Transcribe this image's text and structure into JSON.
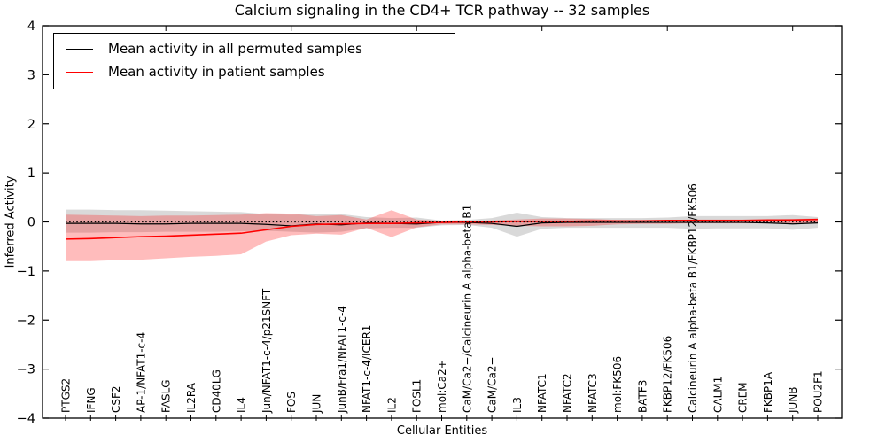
{
  "title": "Calcium signaling in the CD4+ TCR pathway -- 32 samples",
  "legend": {
    "entries": [
      {
        "label": "Mean activity in all permuted samples",
        "color": "#000000"
      },
      {
        "label": "Mean activity in patient samples",
        "color": "#ff0000"
      }
    ]
  },
  "axes": {
    "ylabel": "Inferred Activity",
    "xlabel": "Cellular Entities",
    "y_tick_labels": [
      "4",
      "3",
      "2",
      "1",
      "0",
      "−1",
      "−2",
      "−3",
      "−4"
    ],
    "y_tick_values": [
      4,
      3,
      2,
      1,
      0,
      -1,
      -2,
      -3,
      -4
    ]
  },
  "chart_data": {
    "type": "line",
    "title": "Calcium signaling in the CD4+ TCR pathway -- 32 samples",
    "xlabel": "Cellular Entities",
    "ylabel": "Inferred Activity",
    "ylim": [
      -4,
      4
    ],
    "grid": false,
    "legend_position": "upper left",
    "zero_line": {
      "y": 0,
      "style": "dotted",
      "color": "#000000"
    },
    "categories": [
      "PTGS2",
      "IFNG",
      "CSF2",
      "AP-1/NFAT1-c-4",
      "FASLG",
      "IL2RA",
      "CD40LG",
      "IL4",
      "Jun/NFAT1-c-4/p21SNFT",
      "FOS",
      "JUN",
      "JunB/Fra1/NFAT1-c-4",
      "NFAT1-c-4/ICER1",
      "IL2",
      "FOSL1",
      "mol:Ca2+",
      "CaM/Ca2+/Calcineurin A alpha-beta B1",
      "CaM/Ca2+",
      "IL3",
      "NFATC1",
      "NFATC2",
      "NFATC3",
      "mol:FK506",
      "BATF3",
      "FKBP12/FK506",
      "Calcineurin A alpha-beta B1/FKBP12/FK506",
      "CALM1",
      "CREM",
      "FKBP1A",
      "JUNB",
      "POU2F1"
    ],
    "series": [
      {
        "name": "Mean activity in all permuted samples",
        "color": "#000000",
        "width": 1.2,
        "values": [
          -0.03,
          -0.03,
          -0.03,
          -0.04,
          -0.04,
          -0.03,
          -0.03,
          -0.03,
          -0.05,
          -0.08,
          -0.04,
          -0.06,
          -0.02,
          -0.03,
          -0.04,
          -0.01,
          -0.01,
          -0.03,
          -0.09,
          -0.02,
          -0.01,
          -0.01,
          -0.01,
          -0.01,
          -0.01,
          -0.01,
          -0.01,
          -0.01,
          -0.02,
          -0.04,
          -0.02
        ]
      },
      {
        "name": "Mean activity in patient samples",
        "color": "#ff0000",
        "width": 1.6,
        "values": [
          -0.35,
          -0.34,
          -0.32,
          -0.3,
          -0.29,
          -0.27,
          -0.25,
          -0.23,
          -0.16,
          -0.09,
          -0.05,
          -0.04,
          -0.03,
          -0.03,
          -0.02,
          -0.01,
          0.0,
          0.0,
          0.01,
          0.01,
          0.01,
          0.02,
          0.02,
          0.02,
          0.03,
          0.03,
          0.03,
          0.03,
          0.04,
          0.04,
          0.05
        ]
      }
    ],
    "bands": [
      {
        "name": "permuted-samples-range",
        "color": "#9a9a9a",
        "opacity": 0.38,
        "upper": [
          0.25,
          0.25,
          0.24,
          0.24,
          0.23,
          0.22,
          0.21,
          0.2,
          0.16,
          0.15,
          0.16,
          0.16,
          0.1,
          0.08,
          0.09,
          0.03,
          0.04,
          0.08,
          0.19,
          0.1,
          0.08,
          0.08,
          0.08,
          0.08,
          0.09,
          0.12,
          0.12,
          0.12,
          0.12,
          0.14,
          0.1
        ],
        "lower": [
          -0.22,
          -0.22,
          -0.21,
          -0.21,
          -0.2,
          -0.2,
          -0.2,
          -0.19,
          -0.18,
          -0.2,
          -0.22,
          -0.2,
          -0.13,
          -0.12,
          -0.12,
          -0.07,
          -0.06,
          -0.12,
          -0.3,
          -0.14,
          -0.12,
          -0.12,
          -0.12,
          -0.12,
          -0.12,
          -0.14,
          -0.13,
          -0.13,
          -0.13,
          -0.16,
          -0.12
        ]
      },
      {
        "name": "patient-samples-range",
        "color": "#ff2222",
        "opacity": 0.3,
        "upper": [
          0.15,
          0.14,
          0.13,
          0.12,
          0.13,
          0.13,
          0.14,
          0.15,
          0.18,
          0.17,
          0.12,
          0.14,
          0.05,
          0.24,
          0.05,
          0.02,
          0.02,
          0.03,
          0.05,
          0.07,
          0.07,
          0.06,
          0.04,
          0.04,
          0.04,
          0.05,
          0.05,
          0.05,
          0.05,
          0.06,
          0.07
        ],
        "lower": [
          -0.8,
          -0.8,
          -0.78,
          -0.77,
          -0.74,
          -0.71,
          -0.69,
          -0.66,
          -0.4,
          -0.27,
          -0.24,
          -0.26,
          -0.12,
          -0.31,
          -0.11,
          -0.05,
          -0.05,
          -0.06,
          -0.08,
          -0.09,
          -0.09,
          -0.08,
          -0.05,
          -0.04,
          -0.04,
          -0.03,
          -0.03,
          -0.03,
          -0.03,
          -0.04,
          -0.03
        ]
      }
    ]
  }
}
